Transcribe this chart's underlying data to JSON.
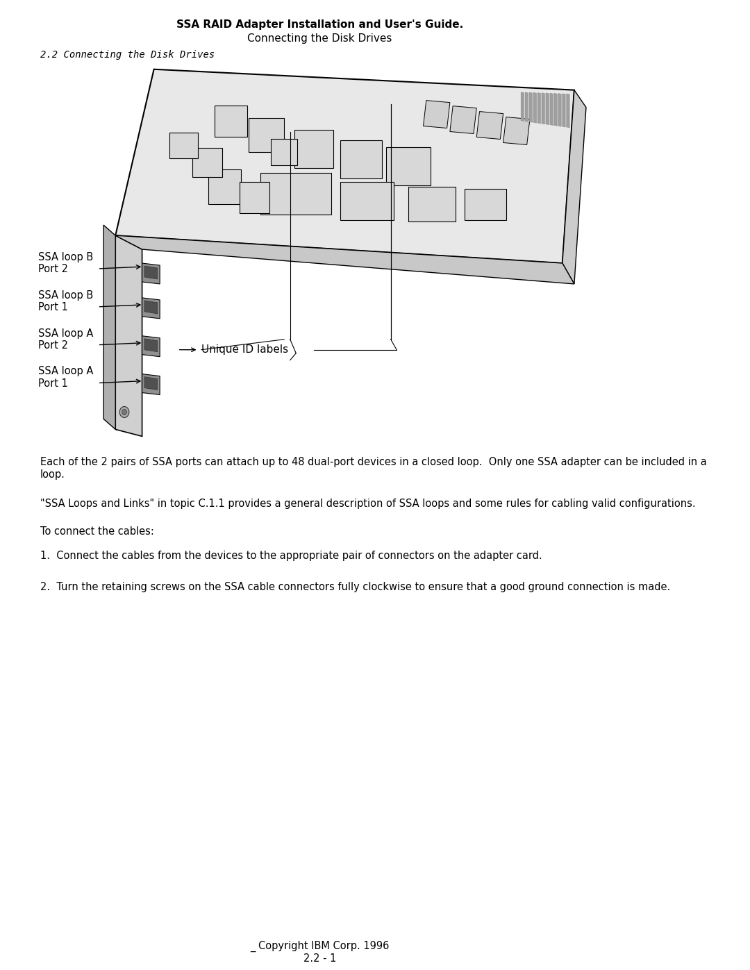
{
  "header_bold": "SSA RAID Adapter Installation and User's Guide.",
  "header_sub": "Connecting the Disk Drives",
  "section_heading": "2.2 Connecting the Disk Drives",
  "body_text_1": "Each of the 2 pairs of SSA ports can attach up to 48 dual-port devices in a closed loop.  Only one SSA adapter can be included in a\nloop.",
  "body_text_2": "\"SSA Loops and Links\" in topic C.1.1 provides a general description of SSA loops and some rules for cabling valid configurations.",
  "body_text_3": "To connect the cables:",
  "body_text_4": "1.  Connect the cables from the devices to the appropriate pair of connectors on the adapter card.",
  "body_text_5": "2.  Turn the retaining screws on the SSA cable connectors fully clockwise to ensure that a good ground connection is made.",
  "footer_text": "_ Copyright IBM Corp. 1996\n2.2 - 1",
  "bg_color": "#ffffff",
  "text_color": "#000000",
  "label_loopB_port2": "SSA loop B\nPort 2",
  "label_loopB_port1": "SSA loop B\nPort 1",
  "label_loopA_port2": "SSA loop A\nPort 2",
  "label_loopA_port1": "SSA loop A\nPort 1",
  "label_unique_id": "Unique ID labels"
}
